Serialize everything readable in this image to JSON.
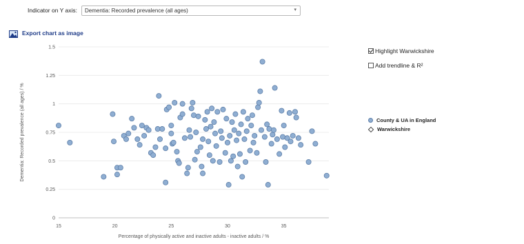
{
  "indicator": {
    "label": "Indicator on Y axis:",
    "selected": "Dementia: Recorded prevalence (all ages)",
    "chevron_icon": "chevron-down-icon"
  },
  "export": {
    "label": "Export chart as image",
    "icon": "image-icon"
  },
  "options": {
    "highlight_label": "Highlight Warwickshire",
    "highlight_checked": true,
    "trendline_label": "Add trendline & R²",
    "trendline_checked": false
  },
  "colors": {
    "point_fill": "#8faed2",
    "point_stroke": "#5d7ea8",
    "highlight_stroke": "#444444",
    "link": "#1f3c88"
  },
  "chart_data": {
    "type": "scatter",
    "xlabel": "Percentage of physically active and inactive adults - inactive adults / %",
    "ylabel": "Dementia: Recorded prevalence (all ages) / %",
    "xlim": [
      15,
      39
    ],
    "ylim": [
      0,
      1.5
    ],
    "x_ticks": [
      "15",
      "20",
      "25",
      "30",
      "35"
    ],
    "x_tick_values": [
      15,
      20,
      25,
      30,
      35
    ],
    "y_ticks": [
      "0",
      "0.25",
      "0.5",
      "0.75",
      "1",
      "1.25",
      "1.5"
    ],
    "y_tick_values": [
      0,
      0.25,
      0.5,
      0.75,
      1,
      1.25,
      1.5
    ],
    "grid": true,
    "legend_position": "right",
    "series": [
      {
        "name": "County & UA in England",
        "marker": "circle",
        "points": [
          [
            15,
            0.81
          ],
          [
            16,
            0.66
          ],
          [
            19,
            0.36
          ],
          [
            19.8,
            0.91
          ],
          [
            19.9,
            0.67
          ],
          [
            20.2,
            0.38
          ],
          [
            20.2,
            0.44
          ],
          [
            20.5,
            0.44
          ],
          [
            20.8,
            0.72
          ],
          [
            21,
            0.69
          ],
          [
            21.2,
            0.74
          ],
          [
            21.5,
            0.87
          ],
          [
            21.7,
            0.79
          ],
          [
            22,
            0.69
          ],
          [
            22.2,
            0.64
          ],
          [
            22.4,
            0.81
          ],
          [
            22.6,
            0.72
          ],
          [
            22.8,
            0.79
          ],
          [
            23,
            0.77
          ],
          [
            23.2,
            0.57
          ],
          [
            23.4,
            0.55
          ],
          [
            23.6,
            0.62
          ],
          [
            23.8,
            0.78
          ],
          [
            24,
            0.69
          ],
          [
            24.2,
            0.78
          ],
          [
            23.9,
            1.07
          ],
          [
            24.5,
            0.61
          ],
          [
            24.5,
            0.31
          ],
          [
            24.6,
            0.95
          ],
          [
            24.8,
            0.97
          ],
          [
            25,
            0.81
          ],
          [
            25,
            0.74
          ],
          [
            25.1,
            0.65
          ],
          [
            25.2,
            0.66
          ],
          [
            25.3,
            1.01
          ],
          [
            25.5,
            0.58
          ],
          [
            25.6,
            0.5
          ],
          [
            25.7,
            0.48
          ],
          [
            25.8,
            0.88
          ],
          [
            26,
            0.91
          ],
          [
            26,
            1
          ],
          [
            26.2,
            0.7
          ],
          [
            26.4,
            0.39
          ],
          [
            26.5,
            0.44
          ],
          [
            26.6,
            0.77
          ],
          [
            26.7,
            0.71
          ],
          [
            26.8,
            0.96
          ],
          [
            26.9,
            1.01
          ],
          [
            27,
            0.9
          ],
          [
            27.1,
            0.51
          ],
          [
            27.2,
            0.75
          ],
          [
            27.3,
            0.58
          ],
          [
            27.4,
            0.89
          ],
          [
            27.6,
            0.62
          ],
          [
            27.7,
            0.45
          ],
          [
            27.8,
            0.39
          ],
          [
            27.8,
            0.69
          ],
          [
            28,
            0.86
          ],
          [
            28.1,
            0.78
          ],
          [
            28.2,
            0.93
          ],
          [
            28.3,
            0.67
          ],
          [
            28.4,
            0.55
          ],
          [
            28.5,
            0.8
          ],
          [
            28.6,
            0.96
          ],
          [
            28.7,
            0.5
          ],
          [
            28.8,
            0.84
          ],
          [
            28.9,
            0.74
          ],
          [
            29,
            0.63
          ],
          [
            29.1,
            0.93
          ],
          [
            29.3,
            0.49
          ],
          [
            29.4,
            0.76
          ],
          [
            29.5,
            0.7
          ],
          [
            29.6,
            0.95
          ],
          [
            29.8,
            0.57
          ],
          [
            29.9,
            0.87
          ],
          [
            30,
            0.66
          ],
          [
            30.1,
            0.29
          ],
          [
            30.2,
            0.72
          ],
          [
            30.3,
            0.5
          ],
          [
            30.4,
            0.84
          ],
          [
            30.5,
            0.54
          ],
          [
            30.6,
            0.77
          ],
          [
            30.7,
            0.91
          ],
          [
            30.8,
            0.68
          ],
          [
            30.9,
            0.45
          ],
          [
            31,
            0.74
          ],
          [
            31.1,
            0.56
          ],
          [
            31.2,
            0.82
          ],
          [
            31.3,
            0.36
          ],
          [
            31.4,
            0.93
          ],
          [
            31.5,
            0.69
          ],
          [
            31.6,
            0.49
          ],
          [
            31.7,
            0.76
          ],
          [
            31.8,
            0.87
          ],
          [
            32,
            0.59
          ],
          [
            32.1,
            0.81
          ],
          [
            32.2,
            0.9
          ],
          [
            32.3,
            0.66
          ],
          [
            32.4,
            0.72
          ],
          [
            32.6,
            0.57
          ],
          [
            32.7,
            0.97
          ],
          [
            32.8,
            1.01
          ],
          [
            32.9,
            1.11
          ],
          [
            33,
            0.77
          ],
          [
            33.1,
            1.37
          ],
          [
            33.3,
            0.71
          ],
          [
            33.4,
            0.49
          ],
          [
            33.5,
            0.82
          ],
          [
            33.6,
            0.29
          ],
          [
            33.7,
            0.78
          ],
          [
            33.9,
            0.65
          ],
          [
            34,
            0.73
          ],
          [
            34.1,
            0.77
          ],
          [
            34.2,
            1.14
          ],
          [
            34.4,
            0.69
          ],
          [
            34.6,
            0.56
          ],
          [
            34.8,
            0.94
          ],
          [
            34.9,
            0.71
          ],
          [
            35,
            0.81
          ],
          [
            35.1,
            0.62
          ],
          [
            35.3,
            0.7
          ],
          [
            35.5,
            0.92
          ],
          [
            35.6,
            0.67
          ],
          [
            35.8,
            0.72
          ],
          [
            36,
            0.93
          ],
          [
            36.1,
            0.88
          ],
          [
            36.3,
            0.7
          ],
          [
            36.5,
            0.64
          ],
          [
            37.2,
            0.49
          ],
          [
            37.5,
            0.76
          ],
          [
            37.8,
            0.65
          ],
          [
            38.8,
            0.37
          ]
        ]
      },
      {
        "name": "Warwickshire",
        "marker": "diamond",
        "points": []
      }
    ]
  }
}
